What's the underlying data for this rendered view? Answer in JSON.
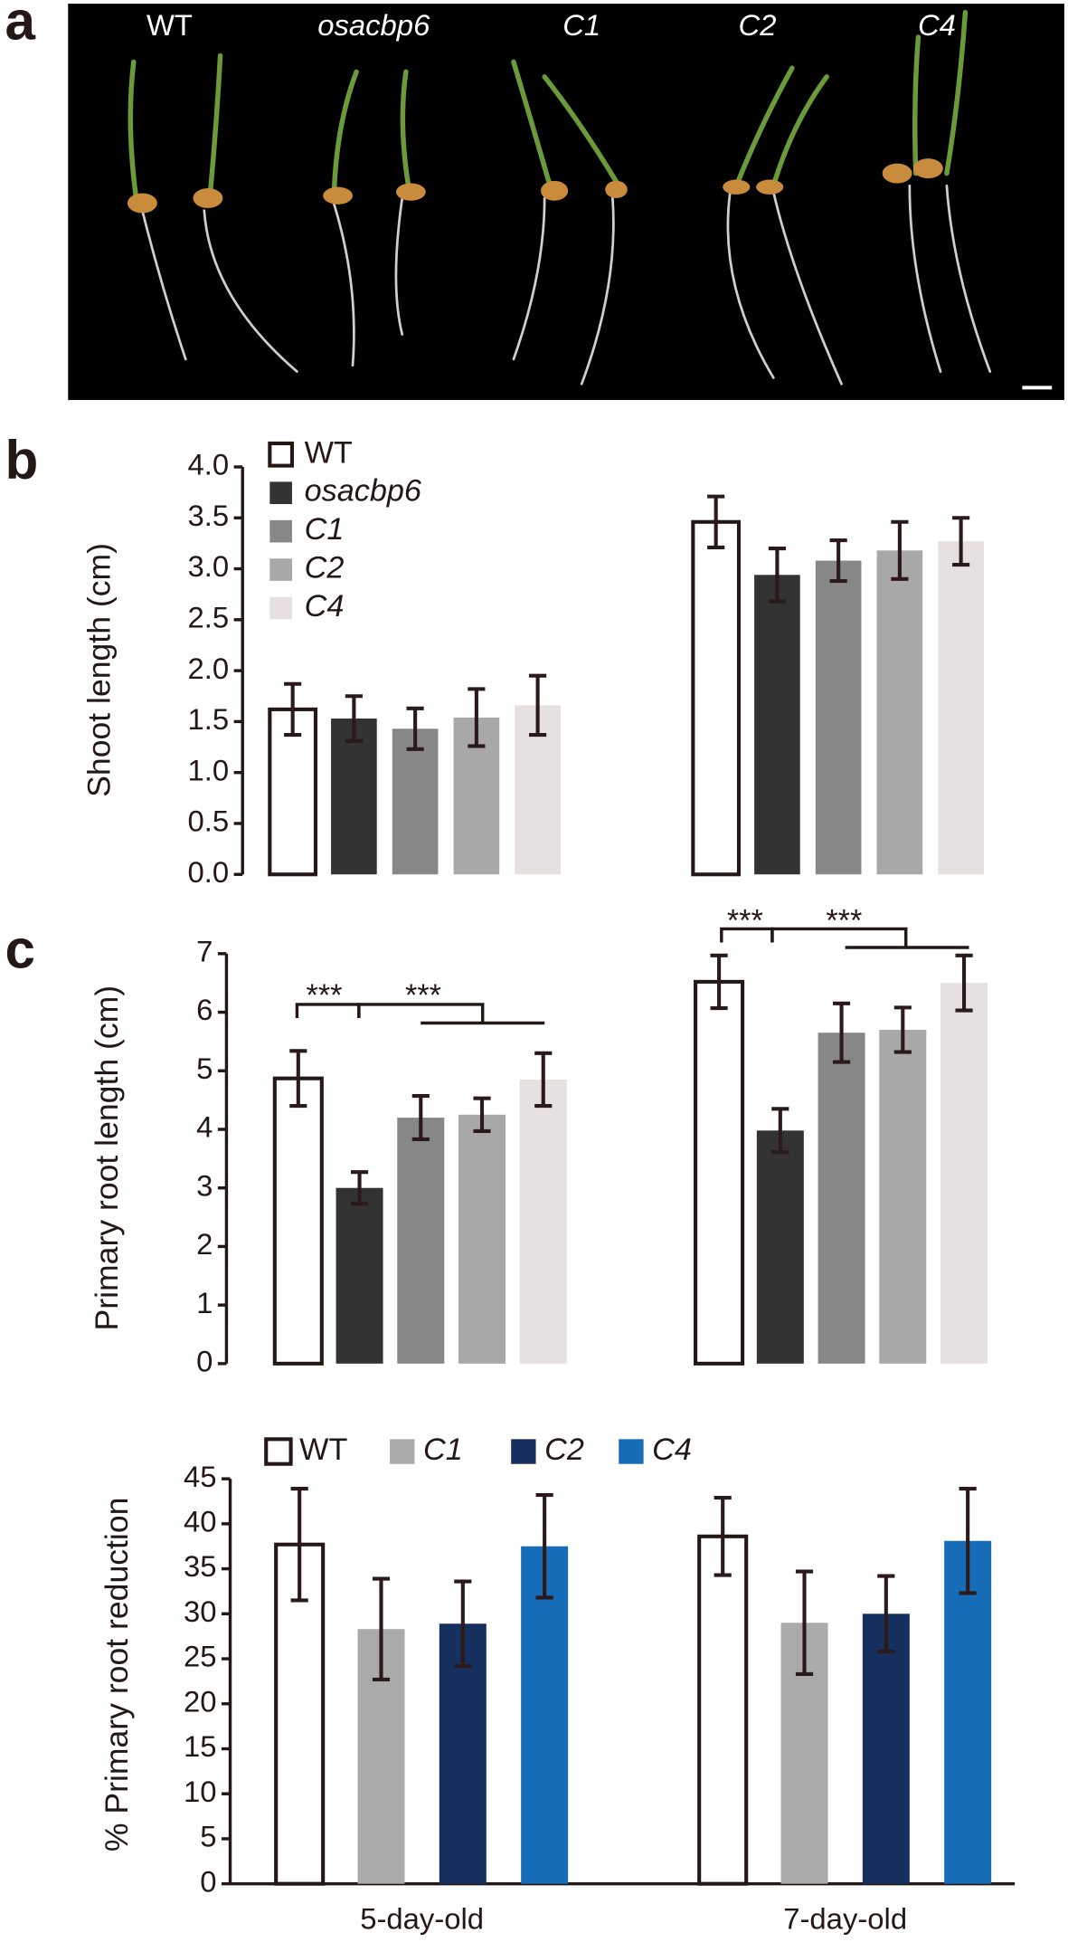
{
  "photo": {
    "letter": "a",
    "labels": [
      "WT",
      "osacbp6",
      "C1",
      "C2",
      "C4"
    ]
  },
  "chart_data": [
    {
      "type": "bar",
      "letter": "b",
      "ylabel": "Shoot length (cm)",
      "categories": [
        null,
        null
      ],
      "series": [
        {
          "name": "WT",
          "color": "#ffffff",
          "values": [
            1.62,
            3.46
          ],
          "errors": [
            0.25,
            0.25
          ]
        },
        {
          "name": "osacbp6",
          "color": "#333333",
          "values": [
            1.53,
            2.94
          ],
          "errors": [
            0.22,
            0.26
          ]
        },
        {
          "name": "C1",
          "color": "#878787",
          "values": [
            1.43,
            3.08
          ],
          "errors": [
            0.2,
            0.2
          ]
        },
        {
          "name": "C2",
          "color": "#a8a8a8",
          "values": [
            1.54,
            3.18
          ],
          "errors": [
            0.28,
            0.28
          ]
        },
        {
          "name": "C4",
          "color": "#e6e0e0",
          "values": [
            1.66,
            3.27
          ],
          "errors": [
            0.29,
            0.23
          ]
        }
      ],
      "ylim": [
        0,
        4
      ],
      "yticks": [
        {
          "value": 0,
          "label": "0.0"
        },
        0.5,
        {
          "value": 1,
          "label": "1.0"
        },
        1.5,
        {
          "value": 2,
          "label": "2.0"
        },
        2.5,
        {
          "value": 3,
          "label": "3.0"
        },
        3.5,
        {
          "value": 4,
          "label": "4.0"
        }
      ],
      "legend": "upper left"
    },
    {
      "type": "bar",
      "letter": "c",
      "ylabel": "Primary root length (cm)",
      "categories": [
        null,
        null
      ],
      "series": [
        {
          "name": "WT",
          "color": "#ffffff",
          "values": [
            4.87,
            6.52
          ],
          "errors": [
            0.47,
            0.45
          ]
        },
        {
          "name": "osacbp6",
          "color": "#333333",
          "values": [
            3.0,
            3.98
          ],
          "errors": [
            0.27,
            0.37
          ]
        },
        {
          "name": "C1",
          "color": "#878787",
          "values": [
            4.2,
            5.65
          ],
          "errors": [
            0.37,
            0.5
          ]
        },
        {
          "name": "C2",
          "color": "#a8a8a8",
          "values": [
            4.25,
            5.7
          ],
          "errors": [
            0.28,
            0.38
          ]
        },
        {
          "name": "C4",
          "color": "#e6e0e0",
          "values": [
            4.85,
            6.5
          ],
          "errors": [
            0.45,
            0.47
          ]
        }
      ],
      "ylim": [
        0,
        7
      ],
      "yticks": [
        0,
        1,
        2,
        3,
        4,
        5,
        6,
        7
      ],
      "annotations": [
        "***",
        "***",
        "***",
        "***"
      ]
    },
    {
      "type": "bar",
      "ylabel": "% Primary root reduction",
      "categories": [
        "5-day-old",
        "7-day-old"
      ],
      "series": [
        {
          "name": "WT",
          "color": "#ffffff",
          "values": [
            37.7,
            38.6
          ],
          "errors": [
            6.2,
            4.3
          ]
        },
        {
          "name": "C1",
          "color": "#aaaaaa",
          "values": [
            28.3,
            29.0
          ],
          "errors": [
            5.6,
            5.7
          ]
        },
        {
          "name": "C2",
          "color": "#15305e",
          "values": [
            28.9,
            30.0
          ],
          "errors": [
            4.7,
            4.2
          ]
        },
        {
          "name": "C4",
          "color": "#176cb8",
          "values": [
            37.5,
            38.1
          ],
          "errors": [
            5.7,
            5.8
          ]
        }
      ],
      "ylim": [
        0,
        45
      ],
      "yticks": [
        0,
        5,
        10,
        15,
        20,
        25,
        30,
        35,
        40,
        45
      ],
      "legend": "top"
    }
  ]
}
